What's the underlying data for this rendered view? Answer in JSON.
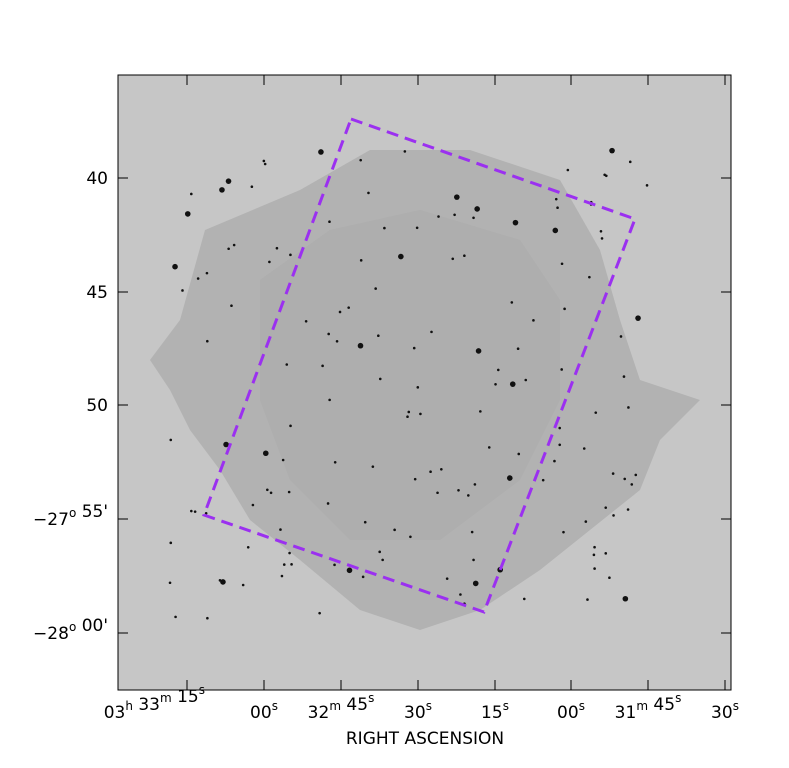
{
  "x_axis": {
    "label": "RIGHT ASCENSION",
    "ticks": [
      [
        {
          "n": "03",
          "u": "h"
        },
        {
          "n": "33",
          "u": "m"
        },
        {
          "n": "15",
          "u": "s"
        }
      ],
      [
        {
          "n": "00",
          "u": "s"
        }
      ],
      [
        {
          "n": "32",
          "u": "m"
        },
        {
          "n": "45",
          "u": "s"
        }
      ],
      [
        {
          "n": "30",
          "u": "s"
        }
      ],
      [
        {
          "n": "15",
          "u": "s"
        }
      ],
      [
        {
          "n": "00",
          "u": "s"
        }
      ],
      [
        {
          "n": "31",
          "u": "m"
        },
        {
          "n": "45",
          "u": "s"
        }
      ],
      [
        {
          "n": "30",
          "u": "s"
        }
      ]
    ]
  },
  "y_axis": {
    "ticks": [
      [
        {
          "n": "40"
        }
      ],
      [
        {
          "n": "45"
        }
      ],
      [
        {
          "n": "50"
        }
      ],
      [
        {
          "n": "−27",
          "u": "o"
        },
        {
          "n": "55'"
        }
      ],
      [
        {
          "n": "−28",
          "u": "o"
        },
        {
          "n": "00'"
        }
      ]
    ]
  }
}
